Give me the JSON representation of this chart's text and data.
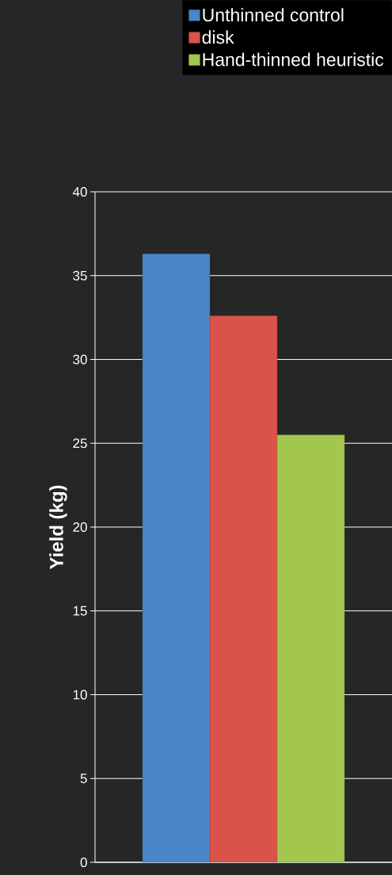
{
  "chart_data": {
    "type": "bar",
    "ylabel": "Yield (kg)",
    "categories": [
      null
    ],
    "series": [
      {
        "name": "Unthinned control",
        "color": "#4a86c8",
        "values": [
          36.3
        ]
      },
      {
        "name": "disk",
        "color": "#d9534a",
        "values": [
          32.6
        ]
      },
      {
        "name": "Hand-thinned heuristic",
        "color": "#a3c64e",
        "values": [
          25.5
        ]
      }
    ],
    "ylim": [
      0,
      40
    ],
    "yticks": [
      0,
      5,
      10,
      15,
      20,
      25,
      30,
      35,
      40
    ],
    "grid": "y",
    "legend": "top"
  }
}
